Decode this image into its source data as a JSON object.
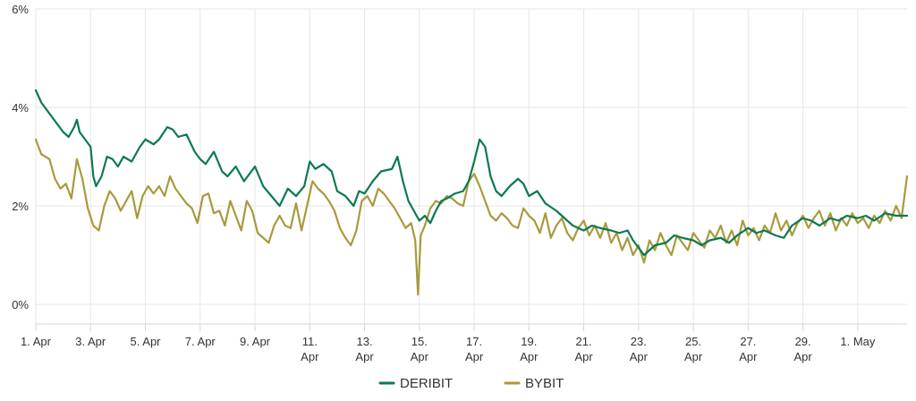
{
  "chart_data": {
    "type": "line",
    "title": "",
    "xlabel": "",
    "ylabel": "",
    "ylim": [
      -0.4,
      6.0
    ],
    "y_ticks": [
      0,
      2,
      4,
      6
    ],
    "y_tick_labels": [
      "0%",
      "2%",
      "4%",
      "6%"
    ],
    "x_unit": "days since 1. Apr",
    "xlim": [
      0,
      31.8
    ],
    "x_ticks": [
      {
        "x": 0,
        "label": [
          "1. Apr"
        ]
      },
      {
        "x": 2,
        "label": [
          "3. Apr"
        ]
      },
      {
        "x": 4,
        "label": [
          "5. Apr"
        ]
      },
      {
        "x": 6,
        "label": [
          "7. Apr"
        ]
      },
      {
        "x": 8,
        "label": [
          "9. Apr"
        ]
      },
      {
        "x": 10,
        "label": [
          "11.",
          "Apr"
        ]
      },
      {
        "x": 12,
        "label": [
          "13.",
          "Apr"
        ]
      },
      {
        "x": 14,
        "label": [
          "15.",
          "Apr"
        ]
      },
      {
        "x": 16,
        "label": [
          "17.",
          "Apr"
        ]
      },
      {
        "x": 18,
        "label": [
          "19.",
          "Apr"
        ]
      },
      {
        "x": 20,
        "label": [
          "21.",
          "Apr"
        ]
      },
      {
        "x": 22,
        "label": [
          "23.",
          "Apr"
        ]
      },
      {
        "x": 24,
        "label": [
          "25.",
          "Apr"
        ]
      },
      {
        "x": 26,
        "label": [
          "27.",
          "Apr"
        ]
      },
      {
        "x": 28,
        "label": [
          "29.",
          "Apr"
        ]
      },
      {
        "x": 30,
        "label": [
          "1. May"
        ]
      }
    ],
    "grid": true,
    "legend_position": "bottom-center",
    "series": [
      {
        "name": "DERIBIT",
        "color": "#0b7a4f",
        "points": [
          [
            0,
            4.35
          ],
          [
            0.2,
            4.1
          ],
          [
            0.4,
            3.95
          ],
          [
            0.6,
            3.8
          ],
          [
            0.8,
            3.65
          ],
          [
            1.0,
            3.5
          ],
          [
            1.2,
            3.4
          ],
          [
            1.4,
            3.6
          ],
          [
            1.5,
            3.75
          ],
          [
            1.6,
            3.5
          ],
          [
            1.8,
            3.35
          ],
          [
            2.0,
            3.2
          ],
          [
            2.1,
            2.6
          ],
          [
            2.2,
            2.4
          ],
          [
            2.4,
            2.6
          ],
          [
            2.6,
            3.0
          ],
          [
            2.8,
            2.95
          ],
          [
            3.0,
            2.8
          ],
          [
            3.2,
            3.0
          ],
          [
            3.5,
            2.9
          ],
          [
            3.8,
            3.2
          ],
          [
            4.0,
            3.35
          ],
          [
            4.3,
            3.25
          ],
          [
            4.5,
            3.35
          ],
          [
            4.8,
            3.6
          ],
          [
            5.0,
            3.55
          ],
          [
            5.2,
            3.4
          ],
          [
            5.5,
            3.45
          ],
          [
            5.8,
            3.1
          ],
          [
            6.0,
            2.95
          ],
          [
            6.2,
            2.85
          ],
          [
            6.5,
            3.1
          ],
          [
            6.8,
            2.7
          ],
          [
            7.0,
            2.6
          ],
          [
            7.3,
            2.8
          ],
          [
            7.6,
            2.5
          ],
          [
            8.0,
            2.8
          ],
          [
            8.3,
            2.4
          ],
          [
            8.6,
            2.2
          ],
          [
            8.9,
            2.0
          ],
          [
            9.2,
            2.35
          ],
          [
            9.5,
            2.2
          ],
          [
            9.8,
            2.4
          ],
          [
            10.0,
            2.9
          ],
          [
            10.2,
            2.75
          ],
          [
            10.5,
            2.85
          ],
          [
            10.8,
            2.7
          ],
          [
            11.0,
            2.3
          ],
          [
            11.3,
            2.2
          ],
          [
            11.6,
            2.0
          ],
          [
            11.8,
            2.3
          ],
          [
            12.0,
            2.25
          ],
          [
            12.3,
            2.5
          ],
          [
            12.6,
            2.7
          ],
          [
            13.0,
            2.75
          ],
          [
            13.2,
            3.0
          ],
          [
            13.4,
            2.5
          ],
          [
            13.6,
            2.1
          ],
          [
            13.8,
            1.9
          ],
          [
            14.0,
            1.7
          ],
          [
            14.2,
            1.8
          ],
          [
            14.4,
            1.65
          ],
          [
            14.6,
            1.9
          ],
          [
            14.8,
            2.1
          ],
          [
            15.0,
            2.15
          ],
          [
            15.3,
            2.25
          ],
          [
            15.6,
            2.3
          ],
          [
            15.8,
            2.5
          ],
          [
            16.0,
            2.9
          ],
          [
            16.2,
            3.35
          ],
          [
            16.4,
            3.2
          ],
          [
            16.6,
            2.6
          ],
          [
            16.8,
            2.3
          ],
          [
            17.0,
            2.2
          ],
          [
            17.3,
            2.4
          ],
          [
            17.6,
            2.55
          ],
          [
            17.8,
            2.45
          ],
          [
            18.0,
            2.2
          ],
          [
            18.3,
            2.3
          ],
          [
            18.6,
            2.05
          ],
          [
            19.0,
            1.9
          ],
          [
            19.3,
            1.75
          ],
          [
            19.6,
            1.6
          ],
          [
            20.0,
            1.5
          ],
          [
            20.3,
            1.6
          ],
          [
            20.6,
            1.55
          ],
          [
            21.0,
            1.5
          ],
          [
            21.3,
            1.45
          ],
          [
            21.6,
            1.5
          ],
          [
            21.8,
            1.3
          ],
          [
            22.0,
            1.15
          ],
          [
            22.2,
            1.0
          ],
          [
            22.4,
            1.1
          ],
          [
            22.6,
            1.2
          ],
          [
            23.0,
            1.25
          ],
          [
            23.3,
            1.4
          ],
          [
            23.6,
            1.35
          ],
          [
            24.0,
            1.3
          ],
          [
            24.3,
            1.2
          ],
          [
            24.6,
            1.3
          ],
          [
            25.0,
            1.35
          ],
          [
            25.3,
            1.25
          ],
          [
            25.6,
            1.4
          ],
          [
            26.0,
            1.55
          ],
          [
            26.3,
            1.45
          ],
          [
            26.6,
            1.5
          ],
          [
            27.0,
            1.4
          ],
          [
            27.3,
            1.35
          ],
          [
            27.6,
            1.6
          ],
          [
            28.0,
            1.75
          ],
          [
            28.3,
            1.7
          ],
          [
            28.6,
            1.6
          ],
          [
            29.0,
            1.75
          ],
          [
            29.3,
            1.7
          ],
          [
            29.6,
            1.8
          ],
          [
            30.0,
            1.75
          ],
          [
            30.3,
            1.8
          ],
          [
            30.6,
            1.7
          ],
          [
            31.0,
            1.85
          ],
          [
            31.4,
            1.8
          ],
          [
            31.8,
            1.8
          ]
        ]
      },
      {
        "name": "BYBIT",
        "color": "#a89a3c",
        "points": [
          [
            0,
            3.35
          ],
          [
            0.2,
            3.05
          ],
          [
            0.5,
            2.95
          ],
          [
            0.7,
            2.55
          ],
          [
            0.9,
            2.35
          ],
          [
            1.1,
            2.45
          ],
          [
            1.3,
            2.15
          ],
          [
            1.5,
            2.95
          ],
          [
            1.7,
            2.55
          ],
          [
            1.9,
            1.95
          ],
          [
            2.1,
            1.6
          ],
          [
            2.3,
            1.5
          ],
          [
            2.5,
            2.0
          ],
          [
            2.7,
            2.3
          ],
          [
            2.9,
            2.15
          ],
          [
            3.1,
            1.9
          ],
          [
            3.3,
            2.1
          ],
          [
            3.5,
            2.3
          ],
          [
            3.7,
            1.75
          ],
          [
            3.9,
            2.2
          ],
          [
            4.1,
            2.4
          ],
          [
            4.3,
            2.25
          ],
          [
            4.5,
            2.4
          ],
          [
            4.7,
            2.2
          ],
          [
            4.9,
            2.6
          ],
          [
            5.1,
            2.35
          ],
          [
            5.3,
            2.2
          ],
          [
            5.5,
            2.05
          ],
          [
            5.7,
            1.95
          ],
          [
            5.9,
            1.65
          ],
          [
            6.1,
            2.2
          ],
          [
            6.3,
            2.25
          ],
          [
            6.5,
            1.85
          ],
          [
            6.7,
            1.9
          ],
          [
            6.9,
            1.6
          ],
          [
            7.1,
            2.1
          ],
          [
            7.3,
            1.8
          ],
          [
            7.5,
            1.5
          ],
          [
            7.7,
            2.1
          ],
          [
            7.9,
            1.9
          ],
          [
            8.1,
            1.45
          ],
          [
            8.3,
            1.35
          ],
          [
            8.5,
            1.25
          ],
          [
            8.7,
            1.6
          ],
          [
            8.9,
            1.8
          ],
          [
            9.1,
            1.6
          ],
          [
            9.3,
            1.55
          ],
          [
            9.5,
            2.05
          ],
          [
            9.7,
            1.5
          ],
          [
            9.9,
            2.0
          ],
          [
            10.1,
            2.5
          ],
          [
            10.3,
            2.35
          ],
          [
            10.5,
            2.25
          ],
          [
            10.7,
            2.1
          ],
          [
            10.9,
            1.9
          ],
          [
            11.1,
            1.55
          ],
          [
            11.3,
            1.35
          ],
          [
            11.5,
            1.2
          ],
          [
            11.7,
            1.5
          ],
          [
            11.9,
            2.1
          ],
          [
            12.1,
            2.2
          ],
          [
            12.3,
            2.0
          ],
          [
            12.5,
            2.35
          ],
          [
            12.7,
            2.25
          ],
          [
            12.9,
            2.1
          ],
          [
            13.1,
            1.95
          ],
          [
            13.3,
            1.75
          ],
          [
            13.5,
            1.55
          ],
          [
            13.7,
            1.65
          ],
          [
            13.85,
            1.3
          ],
          [
            13.95,
            0.2
          ],
          [
            14.05,
            1.4
          ],
          [
            14.2,
            1.6
          ],
          [
            14.4,
            1.95
          ],
          [
            14.6,
            2.1
          ],
          [
            14.8,
            2.05
          ],
          [
            15.0,
            2.2
          ],
          [
            15.2,
            2.15
          ],
          [
            15.4,
            2.05
          ],
          [
            15.6,
            2.0
          ],
          [
            15.8,
            2.5
          ],
          [
            16.0,
            2.65
          ],
          [
            16.2,
            2.4
          ],
          [
            16.4,
            2.1
          ],
          [
            16.6,
            1.8
          ],
          [
            16.8,
            1.7
          ],
          [
            17.0,
            1.85
          ],
          [
            17.2,
            1.75
          ],
          [
            17.4,
            1.6
          ],
          [
            17.6,
            1.55
          ],
          [
            17.8,
            1.95
          ],
          [
            18.0,
            1.8
          ],
          [
            18.2,
            1.7
          ],
          [
            18.4,
            1.45
          ],
          [
            18.6,
            1.85
          ],
          [
            18.8,
            1.35
          ],
          [
            19.0,
            1.6
          ],
          [
            19.2,
            1.75
          ],
          [
            19.4,
            1.45
          ],
          [
            19.6,
            1.3
          ],
          [
            19.8,
            1.55
          ],
          [
            20.0,
            1.7
          ],
          [
            20.2,
            1.4
          ],
          [
            20.4,
            1.6
          ],
          [
            20.6,
            1.35
          ],
          [
            20.8,
            1.65
          ],
          [
            21.0,
            1.25
          ],
          [
            21.2,
            1.45
          ],
          [
            21.4,
            1.1
          ],
          [
            21.6,
            1.35
          ],
          [
            21.8,
            1.0
          ],
          [
            22.0,
            1.2
          ],
          [
            22.2,
            0.85
          ],
          [
            22.4,
            1.3
          ],
          [
            22.6,
            1.1
          ],
          [
            22.8,
            1.45
          ],
          [
            23.0,
            1.2
          ],
          [
            23.2,
            1.0
          ],
          [
            23.4,
            1.4
          ],
          [
            23.6,
            1.25
          ],
          [
            23.8,
            1.1
          ],
          [
            24.0,
            1.45
          ],
          [
            24.2,
            1.3
          ],
          [
            24.4,
            1.15
          ],
          [
            24.6,
            1.5
          ],
          [
            24.8,
            1.35
          ],
          [
            25.0,
            1.6
          ],
          [
            25.2,
            1.25
          ],
          [
            25.4,
            1.5
          ],
          [
            25.6,
            1.2
          ],
          [
            25.8,
            1.7
          ],
          [
            26.0,
            1.4
          ],
          [
            26.2,
            1.55
          ],
          [
            26.4,
            1.3
          ],
          [
            26.6,
            1.6
          ],
          [
            26.8,
            1.45
          ],
          [
            27.0,
            1.85
          ],
          [
            27.2,
            1.5
          ],
          [
            27.4,
            1.7
          ],
          [
            27.6,
            1.4
          ],
          [
            27.8,
            1.65
          ],
          [
            28.0,
            1.8
          ],
          [
            28.2,
            1.55
          ],
          [
            28.4,
            1.75
          ],
          [
            28.6,
            1.9
          ],
          [
            28.8,
            1.6
          ],
          [
            29.0,
            1.85
          ],
          [
            29.2,
            1.5
          ],
          [
            29.4,
            1.75
          ],
          [
            29.6,
            1.6
          ],
          [
            29.8,
            1.85
          ],
          [
            30.0,
            1.65
          ],
          [
            30.2,
            1.75
          ],
          [
            30.4,
            1.55
          ],
          [
            30.6,
            1.8
          ],
          [
            30.8,
            1.65
          ],
          [
            31.0,
            1.9
          ],
          [
            31.2,
            1.7
          ],
          [
            31.4,
            2.0
          ],
          [
            31.6,
            1.75
          ],
          [
            31.8,
            2.6
          ]
        ]
      }
    ]
  }
}
